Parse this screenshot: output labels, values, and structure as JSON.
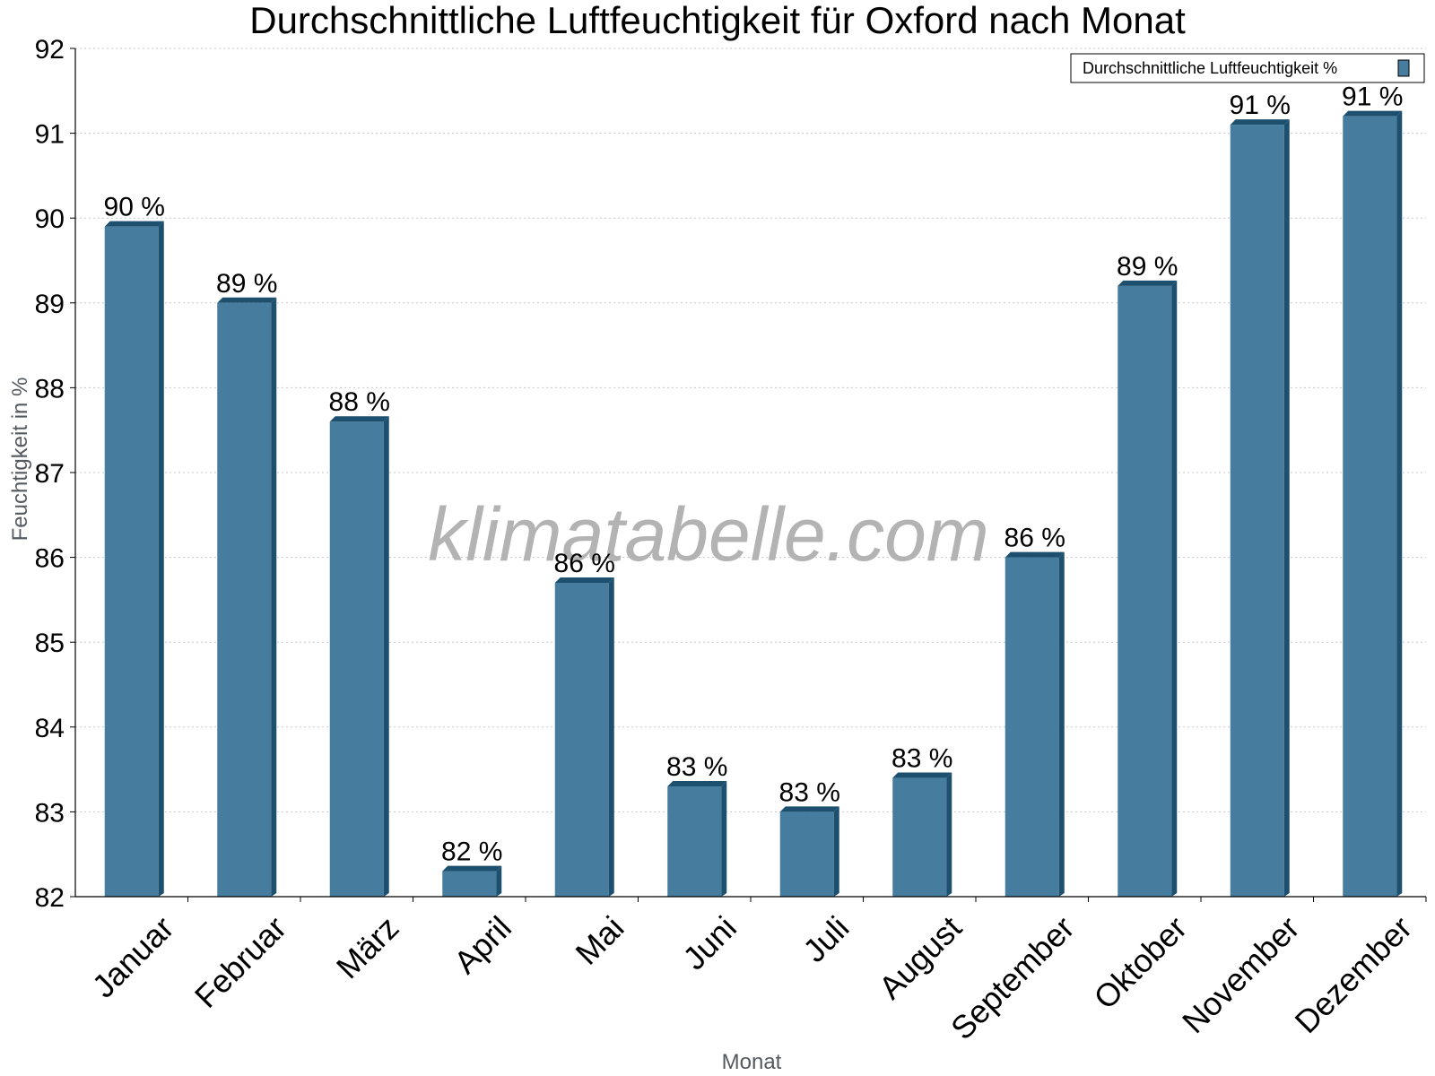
{
  "chart_data": {
    "type": "bar",
    "title": "Durchschnittliche Luftfeuchtigkeit für Oxford nach Monat",
    "xlabel": "Monat",
    "ylabel": "Feuchtigkeit in %",
    "categories": [
      "Januar",
      "Februar",
      "März",
      "April",
      "Mai",
      "Juni",
      "Juli",
      "August",
      "September",
      "Oktober",
      "November",
      "Dezember"
    ],
    "series": [
      {
        "name": "Durchschnittliche Luftfeuchtigkeit %",
        "values": [
          89.9,
          89.0,
          87.6,
          82.3,
          85.7,
          83.3,
          83.0,
          83.4,
          86.0,
          89.2,
          91.1,
          91.2
        ],
        "labels": [
          "90 %",
          "89 %",
          "88 %",
          "82 %",
          "86 %",
          "83 %",
          "83 %",
          "83 %",
          "86 %",
          "89 %",
          "91 %",
          "91 %"
        ],
        "color": "#467c9e"
      }
    ],
    "ylim": [
      82,
      92
    ],
    "yticks": [
      82,
      83,
      84,
      85,
      86,
      87,
      88,
      89,
      90,
      91,
      92
    ],
    "grid": true,
    "legend_position": "top-right",
    "bar_side_color": "#1d4f6e",
    "watermark": "klimatabelle.com"
  }
}
